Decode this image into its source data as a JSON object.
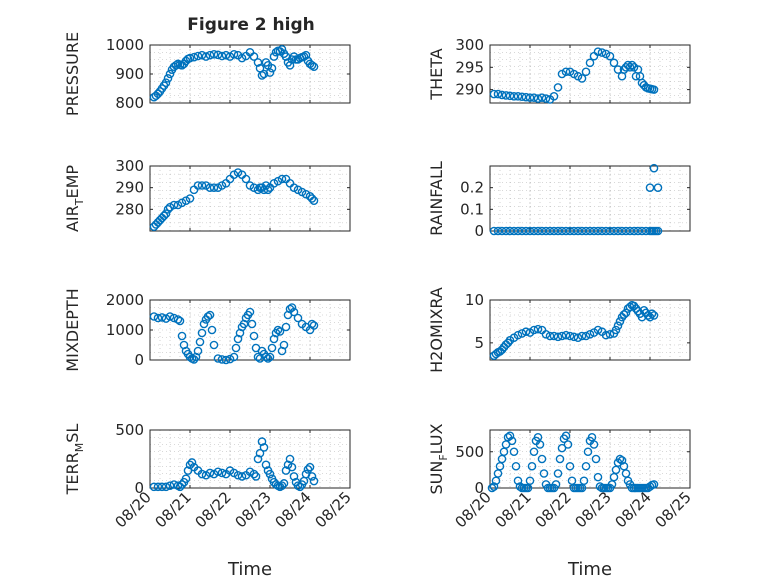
{
  "title": "Figure 2 high",
  "colors": {
    "marker": "#0072BD",
    "axis": "#262626",
    "grid": "#a0a0a0"
  },
  "x_ticks": [
    "08/20",
    "08/21",
    "08/22",
    "08/23",
    "08/24",
    "08/25"
  ],
  "x_label": "Time",
  "chart_data": [
    {
      "type": "scatter",
      "ylabel": "PRESSURE",
      "ylim": [
        800,
        1000
      ],
      "yticks": [
        "800",
        "900",
        "1000"
      ],
      "grid": true,
      "x": [
        0.1,
        0.15,
        0.2,
        0.25,
        0.3,
        0.35,
        0.4,
        0.45,
        0.5,
        0.55,
        0.6,
        0.65,
        0.7,
        0.75,
        0.8,
        0.85,
        0.9,
        0.95,
        1.0,
        1.1,
        1.2,
        1.3,
        1.4,
        1.5,
        1.6,
        1.7,
        1.8,
        1.9,
        2.0,
        2.1,
        2.2,
        2.3,
        2.4,
        2.5,
        2.6,
        2.7,
        2.75,
        2.8,
        2.85,
        2.9,
        2.95,
        3.0,
        3.05,
        3.1,
        3.15,
        3.2,
        3.25,
        3.3,
        3.35,
        3.4,
        3.45,
        3.5,
        3.55,
        3.6,
        3.65,
        3.7,
        3.75,
        3.8,
        3.85,
        3.9,
        3.95,
        4.0,
        4.05,
        4.1
      ],
      "y": [
        820,
        825,
        832,
        840,
        850,
        860,
        870,
        885,
        900,
        915,
        925,
        930,
        935,
        932,
        930,
        935,
        945,
        952,
        955,
        958,
        962,
        965,
        960,
        965,
        968,
        966,
        962,
        965,
        960,
        968,
        965,
        955,
        962,
        975,
        960,
        940,
        920,
        895,
        900,
        940,
        930,
        905,
        920,
        960,
        975,
        980,
        978,
        985,
        970,
        960,
        940,
        930,
        950,
        960,
        950,
        950,
        955,
        958,
        960,
        965,
        945,
        935,
        930,
        925
      ]
    },
    {
      "type": "scatter",
      "ylabel": "THETA",
      "ylim": [
        287,
        300
      ],
      "yticks": [
        "290",
        "295",
        "300"
      ],
      "grid": true,
      "x": [
        0.1,
        0.2,
        0.3,
        0.4,
        0.5,
        0.6,
        0.7,
        0.8,
        0.9,
        1.0,
        1.1,
        1.2,
        1.3,
        1.4,
        1.5,
        1.6,
        1.7,
        1.8,
        1.9,
        2.0,
        2.1,
        2.2,
        2.3,
        2.4,
        2.5,
        2.6,
        2.7,
        2.8,
        2.9,
        3.0,
        3.1,
        3.2,
        3.3,
        3.35,
        3.4,
        3.45,
        3.5,
        3.55,
        3.6,
        3.65,
        3.7,
        3.75,
        3.8,
        3.85,
        3.9,
        3.95,
        4.0,
        4.05,
        4.1
      ],
      "y": [
        289,
        289,
        288.8,
        288.7,
        288.6,
        288.5,
        288.5,
        288.4,
        288.3,
        288.2,
        288.2,
        288.0,
        288.2,
        288.0,
        287.8,
        288.5,
        290.5,
        293.5,
        294.0,
        294.0,
        293.5,
        293.0,
        292.5,
        294.0,
        296.0,
        297.5,
        298.5,
        298.3,
        298.0,
        297.5,
        296.0,
        294.5,
        293.0,
        294.5,
        295.0,
        295.5,
        295.0,
        295.5,
        295.0,
        293.0,
        294.5,
        293.0,
        291.5,
        291.0,
        290.5,
        290.3,
        290.2,
        290.1,
        290.0
      ]
    },
    {
      "type": "scatter",
      "ylabel": "AIR_TEMP",
      "ylim": [
        270,
        300
      ],
      "yticks": [
        "280",
        "290",
        "300"
      ],
      "grid": true,
      "x": [
        0.1,
        0.15,
        0.2,
        0.25,
        0.3,
        0.35,
        0.4,
        0.45,
        0.5,
        0.6,
        0.7,
        0.8,
        0.9,
        1.0,
        1.1,
        1.2,
        1.3,
        1.4,
        1.5,
        1.6,
        1.7,
        1.8,
        1.9,
        2.0,
        2.1,
        2.2,
        2.3,
        2.4,
        2.5,
        2.6,
        2.7,
        2.75,
        2.8,
        2.85,
        2.9,
        2.95,
        3.0,
        3.1,
        3.2,
        3.3,
        3.4,
        3.5,
        3.6,
        3.7,
        3.8,
        3.9,
        4.0,
        4.05,
        4.1
      ],
      "y": [
        272,
        273,
        274,
        275,
        276,
        277,
        278,
        280,
        281,
        282,
        282,
        283,
        284,
        285,
        289,
        291,
        291,
        291,
        290,
        290,
        290,
        291,
        292,
        294,
        296,
        297,
        296,
        294,
        291,
        290,
        289,
        290,
        290,
        289,
        291,
        289,
        290,
        292,
        293,
        294,
        294,
        292,
        290,
        289,
        288,
        287,
        286,
        285,
        284
      ]
    },
    {
      "type": "scatter",
      "ylabel": "RAINFALL",
      "ylim": [
        0,
        0.3
      ],
      "yticks": [
        "0",
        "0.1",
        "0.2"
      ],
      "grid": true,
      "x": [
        0.1,
        0.2,
        0.3,
        0.4,
        0.5,
        0.6,
        0.7,
        0.8,
        0.9,
        1.0,
        1.1,
        1.2,
        1.3,
        1.4,
        1.5,
        1.6,
        1.7,
        1.8,
        1.9,
        2.0,
        2.1,
        2.2,
        2.3,
        2.4,
        2.5,
        2.6,
        2.7,
        2.8,
        2.9,
        3.0,
        3.1,
        3.2,
        3.3,
        3.4,
        3.5,
        3.6,
        3.7,
        3.8,
        3.9,
        4.0,
        4.05,
        4.1,
        4.15,
        4.2,
        4.0,
        4.2,
        4.1
      ],
      "y": [
        0,
        0,
        0,
        0,
        0,
        0,
        0,
        0,
        0,
        0,
        0,
        0,
        0,
        0,
        0,
        0,
        0,
        0,
        0,
        0,
        0,
        0,
        0,
        0,
        0,
        0,
        0,
        0,
        0,
        0,
        0,
        0,
        0,
        0,
        0,
        0,
        0,
        0,
        0,
        0,
        0,
        0,
        0,
        0,
        0.2,
        0.2,
        0.29
      ]
    },
    {
      "type": "scatter",
      "ylabel": "MIXDEPTH",
      "ylim": [
        0,
        2000
      ],
      "yticks": [
        "0",
        "1000",
        "2000"
      ],
      "grid": true,
      "x": [
        0.1,
        0.2,
        0.3,
        0.4,
        0.5,
        0.6,
        0.7,
        0.75,
        0.8,
        0.85,
        0.9,
        0.95,
        1.0,
        1.05,
        1.1,
        1.15,
        1.2,
        1.25,
        1.3,
        1.35,
        1.4,
        1.45,
        1.5,
        1.55,
        1.6,
        1.7,
        1.8,
        1.9,
        2.0,
        2.1,
        2.15,
        2.2,
        2.25,
        2.3,
        2.35,
        2.4,
        2.45,
        2.5,
        2.55,
        2.6,
        2.65,
        2.7,
        2.75,
        2.8,
        2.85,
        2.9,
        2.95,
        3.0,
        3.05,
        3.1,
        3.15,
        3.2,
        3.25,
        3.3,
        3.35,
        3.4,
        3.45,
        3.5,
        3.55,
        3.6,
        3.7,
        3.8,
        3.9,
        4.0,
        4.05,
        4.1
      ],
      "y": [
        1450,
        1400,
        1420,
        1380,
        1450,
        1400,
        1350,
        1300,
        800,
        500,
        300,
        200,
        100,
        50,
        20,
        100,
        300,
        600,
        900,
        1200,
        1350,
        1450,
        1500,
        1000,
        500,
        50,
        20,
        0,
        30,
        100,
        400,
        700,
        900,
        1100,
        1200,
        1400,
        1500,
        1600,
        1200,
        800,
        400,
        100,
        50,
        300,
        200,
        100,
        50,
        100,
        400,
        700,
        900,
        1000,
        950,
        300,
        500,
        1100,
        1500,
        1700,
        1750,
        1600,
        1400,
        1200,
        1100,
        1000,
        1200,
        1150
      ]
    },
    {
      "type": "scatter",
      "ylabel": "H2OMIXRA",
      "ylim": [
        3,
        10
      ],
      "yticks": [
        "5",
        "10"
      ],
      "grid": true,
      "x": [
        0.1,
        0.15,
        0.2,
        0.25,
        0.3,
        0.35,
        0.4,
        0.45,
        0.5,
        0.6,
        0.7,
        0.8,
        0.9,
        1.0,
        1.1,
        1.2,
        1.3,
        1.4,
        1.5,
        1.6,
        1.7,
        1.8,
        1.9,
        2.0,
        2.1,
        2.2,
        2.3,
        2.4,
        2.5,
        2.6,
        2.7,
        2.8,
        2.9,
        3.0,
        3.1,
        3.15,
        3.2,
        3.25,
        3.3,
        3.35,
        3.4,
        3.45,
        3.5,
        3.55,
        3.6,
        3.65,
        3.7,
        3.75,
        3.8,
        3.85,
        3.9,
        3.95,
        4.0,
        4.05,
        4.1
      ],
      "y": [
        3.5,
        3.7,
        3.9,
        4.0,
        4.2,
        4.5,
        4.8,
        5.0,
        5.3,
        5.6,
        5.9,
        6.1,
        6.3,
        6.2,
        6.5,
        6.6,
        6.5,
        6.0,
        5.8,
        5.8,
        5.7,
        5.8,
        5.9,
        5.8,
        5.7,
        5.6,
        5.8,
        5.8,
        6.0,
        6.2,
        6.5,
        6.3,
        5.9,
        6.0,
        6.1,
        6.5,
        7.0,
        7.5,
        8.0,
        8.3,
        8.5,
        9.0,
        9.2,
        9.4,
        9.3,
        9.0,
        8.7,
        8.4,
        8.0,
        8.8,
        8.5,
        8.2,
        8.0,
        8.4,
        8.2
      ]
    },
    {
      "type": "scatter",
      "ylabel": "TERR_MSL",
      "ylim": [
        0,
        500
      ],
      "yticks": [
        "0",
        "500"
      ],
      "grid": true,
      "x": [
        0.1,
        0.2,
        0.3,
        0.4,
        0.5,
        0.6,
        0.7,
        0.75,
        0.8,
        0.85,
        0.9,
        0.95,
        1.0,
        1.05,
        1.1,
        1.2,
        1.3,
        1.4,
        1.5,
        1.6,
        1.7,
        1.8,
        1.9,
        2.0,
        2.1,
        2.2,
        2.3,
        2.4,
        2.5,
        2.6,
        2.65,
        2.7,
        2.75,
        2.8,
        2.85,
        2.9,
        2.95,
        3.0,
        3.05,
        3.1,
        3.15,
        3.2,
        3.25,
        3.3,
        3.35,
        3.4,
        3.45,
        3.5,
        3.55,
        3.6,
        3.65,
        3.7,
        3.75,
        3.8,
        3.85,
        3.9,
        3.95,
        4.0,
        4.05,
        4.1
      ],
      "y": [
        10,
        10,
        10,
        10,
        20,
        30,
        20,
        10,
        30,
        50,
        80,
        150,
        200,
        220,
        180,
        150,
        120,
        110,
        130,
        120,
        140,
        130,
        120,
        150,
        130,
        110,
        100,
        110,
        140,
        120,
        100,
        250,
        300,
        400,
        350,
        200,
        150,
        120,
        80,
        50,
        30,
        20,
        10,
        20,
        40,
        150,
        200,
        250,
        180,
        100,
        50,
        20,
        10,
        30,
        60,
        120,
        160,
        180,
        100,
        60
      ]
    },
    {
      "type": "scatter",
      "ylabel": "SUN_FLUX",
      "ylim": [
        0,
        800
      ],
      "yticks": [
        "0",
        "500"
      ],
      "grid": true,
      "x": [
        0.05,
        0.1,
        0.15,
        0.2,
        0.25,
        0.3,
        0.35,
        0.4,
        0.45,
        0.5,
        0.55,
        0.6,
        0.65,
        0.7,
        0.75,
        0.8,
        0.85,
        0.9,
        0.95,
        1.0,
        1.05,
        1.1,
        1.15,
        1.2,
        1.25,
        1.3,
        1.35,
        1.4,
        1.45,
        1.5,
        1.55,
        1.6,
        1.65,
        1.7,
        1.75,
        1.8,
        1.85,
        1.9,
        1.95,
        2.0,
        2.05,
        2.1,
        2.15,
        2.2,
        2.25,
        2.3,
        2.35,
        2.4,
        2.45,
        2.5,
        2.55,
        2.6,
        2.65,
        2.7,
        2.75,
        2.8,
        2.85,
        2.9,
        2.95,
        3.0,
        3.05,
        3.1,
        3.15,
        3.2,
        3.25,
        3.3,
        3.35,
        3.4,
        3.45,
        3.5,
        3.55,
        3.6,
        3.65,
        3.7,
        3.75,
        3.8,
        3.85,
        3.9,
        3.95,
        4.0,
        4.05,
        4.1
      ],
      "y": [
        0,
        20,
        100,
        200,
        300,
        400,
        500,
        600,
        700,
        720,
        650,
        500,
        300,
        100,
        20,
        0,
        0,
        0,
        0,
        100,
        300,
        500,
        650,
        700,
        600,
        400,
        200,
        50,
        0,
        0,
        0,
        0,
        50,
        200,
        400,
        550,
        680,
        720,
        600,
        300,
        100,
        0,
        0,
        0,
        0,
        0,
        100,
        300,
        500,
        650,
        700,
        600,
        400,
        150,
        20,
        0,
        0,
        0,
        0,
        0,
        50,
        150,
        250,
        350,
        400,
        380,
        300,
        200,
        100,
        50,
        0,
        0,
        0,
        0,
        0,
        0,
        0,
        0,
        0,
        20,
        40,
        50
      ]
    }
  ]
}
